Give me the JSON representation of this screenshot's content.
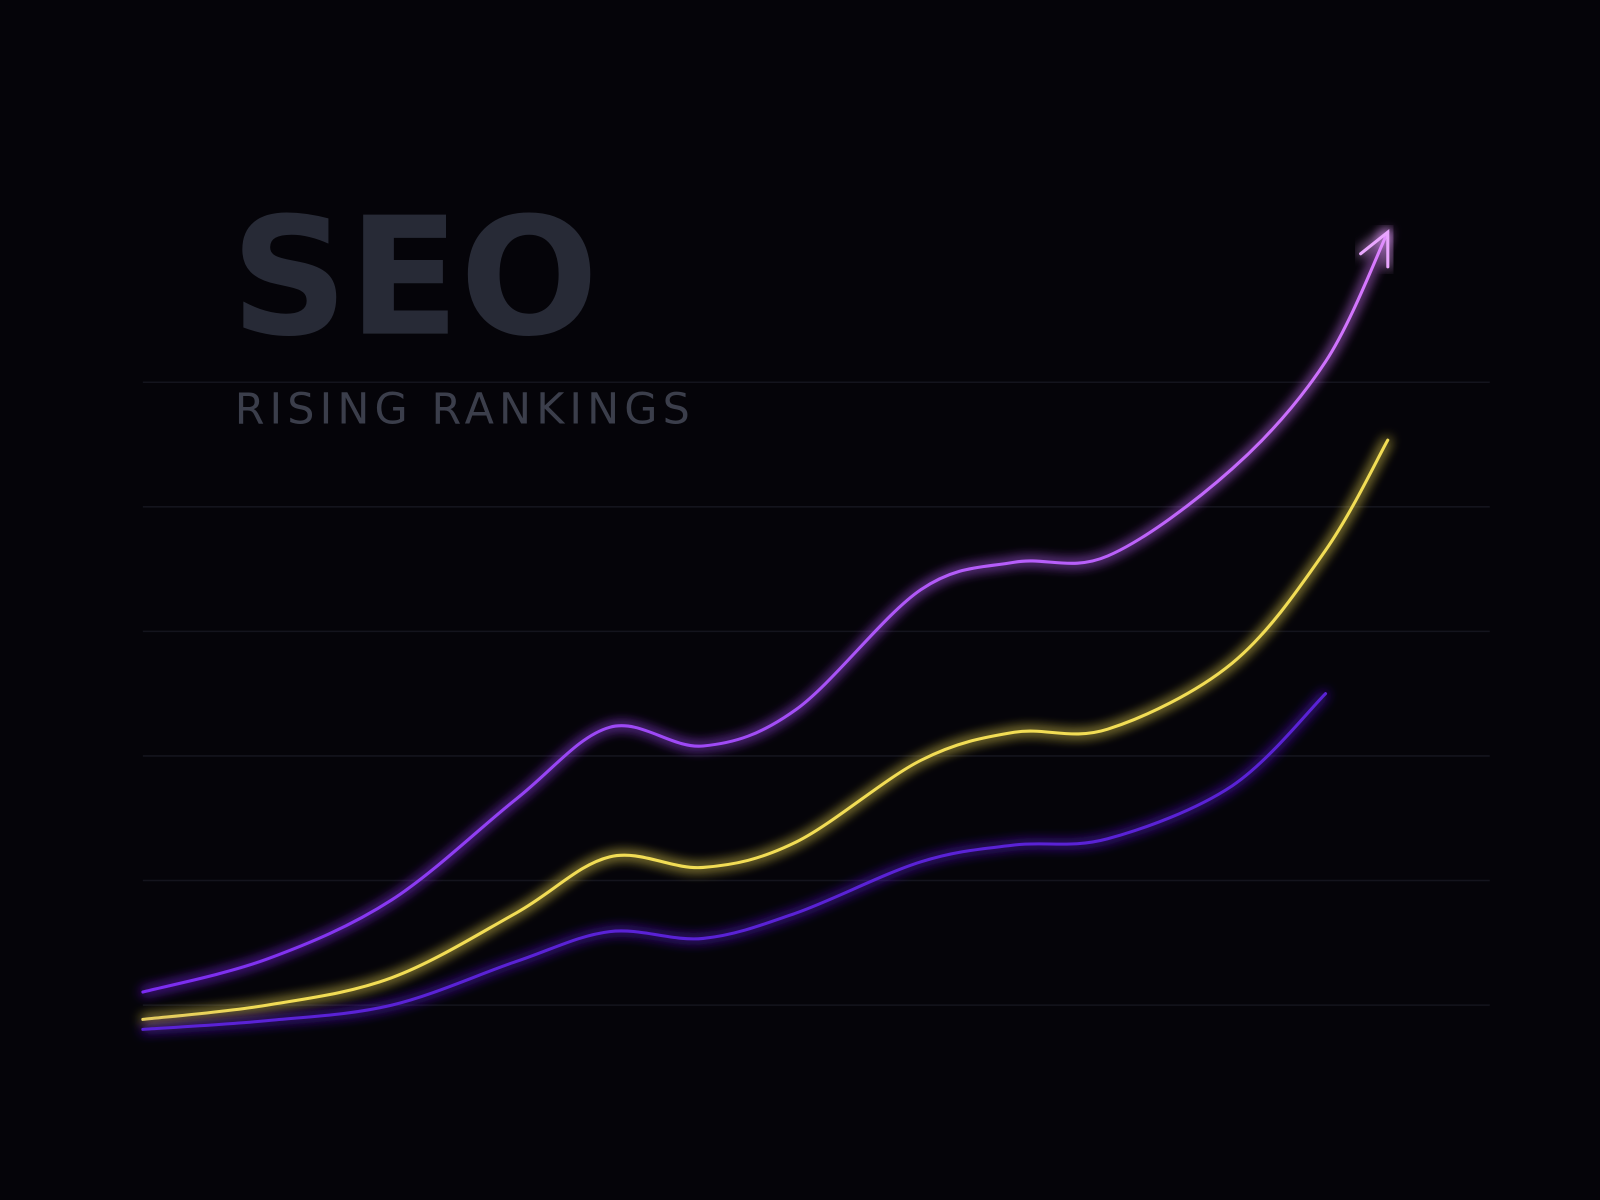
{
  "chart_data": {
    "type": "line",
    "title": "SEO",
    "subtitle": "RISING RANKINGS",
    "x": [
      0,
      2,
      4,
      6,
      7.5,
      9,
      10.5,
      12.5,
      14,
      15.5,
      17.5,
      19,
      20
    ],
    "xlim": [
      0,
      20
    ],
    "ylim": [
      -5,
      125
    ],
    "yticks": [
      0,
      20,
      40,
      60,
      80,
      100
    ],
    "grid": true,
    "series": [
      {
        "color": "#b34dff",
        "values": [
          2.1,
          7.4,
          16.9,
          33.1,
          44.6,
          41.6,
          47.5,
          66.7,
          71.1,
          72.1,
          86.1,
          103.3,
          124.1
        ]
      },
      {
        "color": "#f2dd55",
        "values": [
          -2.3,
          0,
          4.4,
          14.8,
          23.8,
          22.1,
          26.2,
          39.3,
          43.8,
          44.3,
          54.9,
          73.0,
          90.7
        ]
      },
      {
        "color": "#5a22d6",
        "values": [
          -3.9,
          -2.5,
          0,
          7.0,
          11.8,
          10.7,
          14.8,
          23.0,
          25.7,
          26.7,
          35.2,
          50.0,
          null
        ]
      }
    ]
  }
}
